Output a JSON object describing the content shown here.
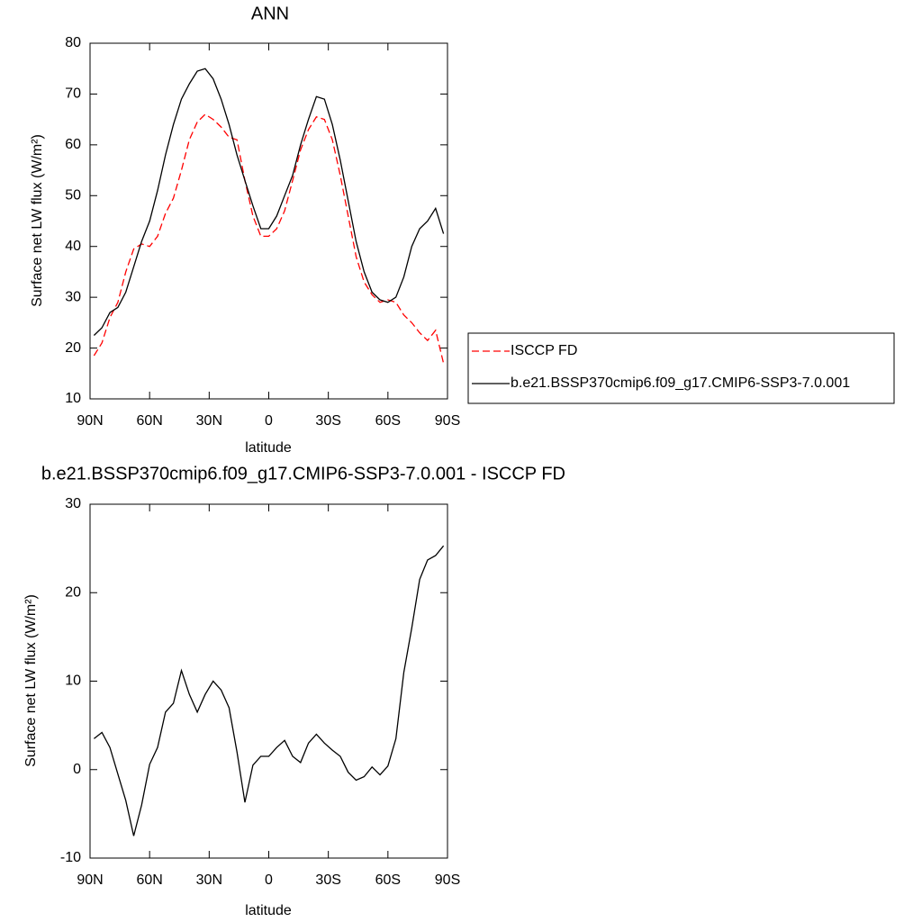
{
  "chart_data": [
    {
      "type": "line",
      "title": "ANN",
      "xlabel": "latitude",
      "ylabel": "Surface net LW flux (W/m²)",
      "x": [
        88,
        84,
        80,
        76,
        72,
        68,
        64,
        60,
        56,
        52,
        48,
        44,
        40,
        36,
        32,
        28,
        24,
        20,
        16,
        12,
        8,
        4,
        0,
        -4,
        -8,
        -12,
        -16,
        -20,
        -24,
        -28,
        -32,
        -36,
        -40,
        -44,
        -48,
        -52,
        -56,
        -60,
        -64,
        -68,
        -72,
        -76,
        -80,
        -84,
        -88
      ],
      "xlim": [
        90,
        -90
      ],
      "xticks": [
        {
          "value": 90,
          "label": "90N"
        },
        {
          "value": 60,
          "label": "60N"
        },
        {
          "value": 30,
          "label": "30N"
        },
        0,
        {
          "value": -30,
          "label": "30S"
        },
        {
          "value": -60,
          "label": "60S"
        },
        {
          "value": -90,
          "label": "90S"
        }
      ],
      "ylim": [
        10,
        80
      ],
      "yticks": [
        10,
        20,
        30,
        40,
        50,
        60,
        70,
        80
      ],
      "series": [
        {
          "name": "ISCCP FD",
          "color": "#ff0000",
          "dash": true,
          "values": [
            18.5,
            21,
            26,
            29,
            35,
            39.5,
            40.5,
            40,
            42,
            46.5,
            49.5,
            55,
            61,
            64.5,
            66,
            65,
            63.5,
            61.5,
            61,
            53,
            46,
            42,
            42,
            43.5,
            47,
            53,
            59,
            63,
            65.5,
            65,
            61,
            54,
            46,
            38,
            33,
            30.5,
            29,
            29.5,
            29,
            26.5,
            25,
            23,
            21.5,
            23.5,
            17
          ]
        },
        {
          "name": "b.e21.BSSP370cmip6.f09_g17.CMIP6-SSP3-7.0.001",
          "color": "#000000",
          "dash": false,
          "values": [
            22.5,
            24,
            27,
            28,
            31,
            36,
            41,
            45,
            51,
            58,
            64,
            69,
            72,
            74.5,
            75,
            73,
            69,
            64,
            58,
            53,
            48,
            43.5,
            43.5,
            46,
            50,
            54,
            60,
            65,
            69.5,
            69,
            64,
            57,
            49,
            41,
            35,
            31,
            29.5,
            29,
            30,
            34,
            40,
            43.5,
            45,
            47.5,
            42.5
          ]
        }
      ]
    },
    {
      "type": "line",
      "title": "b.e21.BSSP370cmip6.f09_g17.CMIP6-SSP3-7.0.001 - ISCCP FD",
      "xlabel": "latitude",
      "ylabel": "Surface net LW flux (W/m²)",
      "x": [
        88,
        84,
        80,
        76,
        72,
        68,
        64,
        60,
        56,
        52,
        48,
        44,
        40,
        36,
        32,
        28,
        24,
        20,
        16,
        12,
        8,
        4,
        0,
        -4,
        -8,
        -12,
        -16,
        -20,
        -24,
        -28,
        -32,
        -36,
        -40,
        -44,
        -48,
        -52,
        -56,
        -60,
        -64,
        -68,
        -72,
        -76,
        -80,
        -84,
        -88
      ],
      "xlim": [
        90,
        -90
      ],
      "xticks": [
        {
          "value": 90,
          "label": "90N"
        },
        {
          "value": 60,
          "label": "60N"
        },
        {
          "value": 30,
          "label": "30N"
        },
        0,
        {
          "value": -30,
          "label": "30S"
        },
        {
          "value": -60,
          "label": "60S"
        },
        {
          "value": -90,
          "label": "90S"
        }
      ],
      "ylim": [
        -10,
        30
      ],
      "yticks": [
        -10,
        0,
        10,
        20,
        30
      ],
      "color": "#000000",
      "values": [
        3.5,
        4.2,
        2.5,
        -0.5,
        -3.5,
        -7.5,
        -4,
        0.6,
        2.5,
        6.5,
        7.5,
        11.2,
        8.5,
        6.5,
        8.5,
        10,
        9,
        7,
        2,
        -3.7,
        0.5,
        1.5,
        1.5,
        2.5,
        3.3,
        1.5,
        0.8,
        3,
        4,
        3,
        2.2,
        1.5,
        -0.3,
        -1.2,
        -0.8,
        0.3,
        -0.6,
        0.4,
        3.5,
        11,
        16,
        21.5,
        23.7,
        24.2,
        25.3
      ]
    }
  ]
}
